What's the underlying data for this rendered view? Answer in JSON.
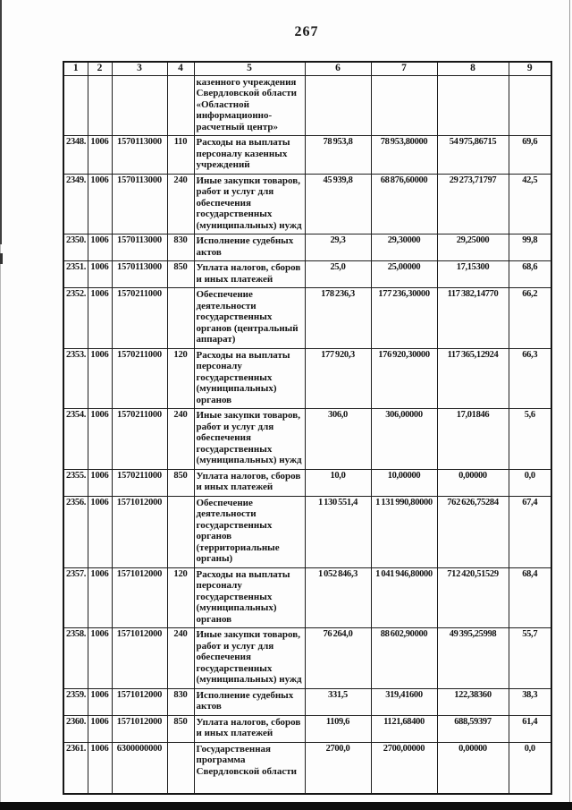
{
  "page": {
    "number": "267"
  },
  "table": {
    "headers": [
      "1",
      "2",
      "3",
      "4",
      "5",
      "6",
      "7",
      "8",
      "9"
    ],
    "rows": [
      [
        "",
        "",
        "",
        "",
        "казенного учреждения\nСвердловской области\n«Областной\nинформационно-\nрасчетный центр»",
        "",
        "",
        "",
        ""
      ],
      [
        "2348.",
        "1006",
        "1570113000",
        "110",
        "Расходы на выплаты\nперсоналу казенных\nучреждений",
        "78 953,8",
        "78 953,80000",
        "54 975,86715",
        "69,6"
      ],
      [
        "2349.",
        "1006",
        "1570113000",
        "240",
        "Иные закупки товаров,\nработ и услуг для\nобеспечения\nгосударственных\n(муниципальных) нужд",
        "45 939,8",
        "68 876,60000",
        "29 273,71797",
        "42,5"
      ],
      [
        "2350.",
        "1006",
        "1570113000",
        "830",
        "Исполнение судебных\nактов",
        "29,3",
        "29,30000",
        "29,25000",
        "99,8"
      ],
      [
        "2351.",
        "1006",
        "1570113000",
        "850",
        "Уплата налогов, сборов\nи иных платежей",
        "25,0",
        "25,00000",
        "17,15300",
        "68,6"
      ],
      [
        "2352.",
        "1006",
        "1570211000",
        "",
        "Обеспечение\nдеятельности\nгосударственных\nорганов (центральный\nаппарат)",
        "178 236,3",
        "177 236,30000",
        "117 382,14770",
        "66,2"
      ],
      [
        "2353.",
        "1006",
        "1570211000",
        "120",
        "Расходы на выплаты\nперсоналу\nгосударственных\n(муниципальных)\nорганов",
        "177 920,3",
        "176 920,30000",
        "117 365,12924",
        "66,3"
      ],
      [
        "2354.",
        "1006",
        "1570211000",
        "240",
        "Иные закупки товаров,\nработ и услуг для\nобеспечения\nгосударственных\n(муниципальных) нужд",
        "306,0",
        "306,00000",
        "17,01846",
        "5,6"
      ],
      [
        "2355.",
        "1006",
        "1570211000",
        "850",
        "Уплата налогов, сборов\nи иных платежей",
        "10,0",
        "10,00000",
        "0,00000",
        "0,0"
      ],
      [
        "2356.",
        "1006",
        "1571012000",
        "",
        "Обеспечение\nдеятельности\nгосударственных\nорганов\n(территориальные\nорганы)",
        "1 130 551,4",
        "1 131 990,80000",
        "762 626,75284",
        "67,4"
      ],
      [
        "2357.",
        "1006",
        "1571012000",
        "120",
        "Расходы на выплаты\nперсоналу\nгосударственных\n(муниципальных)\nорганов",
        "1 052 846,3",
        "1 041 946,80000",
        "712 420,51529",
        "68,4"
      ],
      [
        "2358.",
        "1006",
        "1571012000",
        "240",
        "Иные закупки товаров,\nработ и услуг для\nобеспечения\nгосударственных\n(муниципальных) нужд",
        "76 264,0",
        "88 602,90000",
        "49 395,25998",
        "55,7"
      ],
      [
        "2359.",
        "1006",
        "1571012000",
        "830",
        "Исполнение судебных\nактов",
        "331,5",
        "319,41600",
        "122,38360",
        "38,3"
      ],
      [
        "2360.",
        "1006",
        "1571012000",
        "850",
        "Уплата налогов, сборов\nи иных платежей",
        "1109,6",
        "1121,68400",
        "688,59397",
        "61,4"
      ],
      [
        "2361.",
        "1006",
        "6300000000",
        "",
        "Государственная\nпрограмма\nСвердловской области",
        "2700,0",
        "2700,00000",
        "0,00000",
        "0,0"
      ]
    ]
  }
}
